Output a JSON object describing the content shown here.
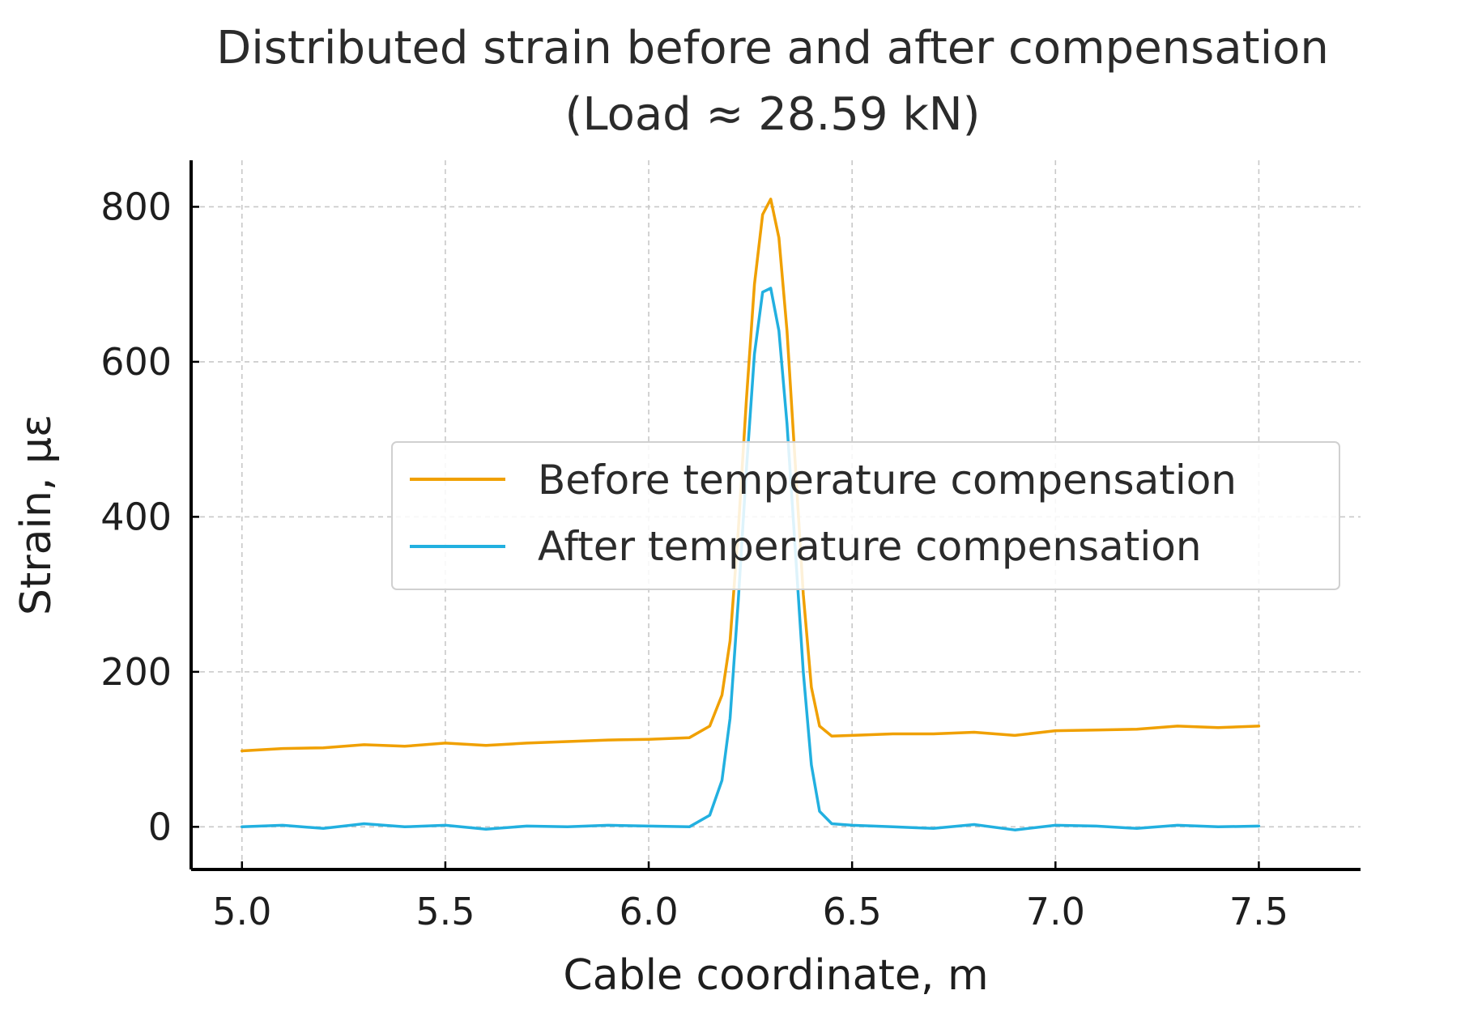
{
  "chart_data": {
    "type": "line",
    "title": [
      "Distributed strain before and after compensation",
      "(Load ≈ 28.59 kN)"
    ],
    "xlabel": "Cable coordinate, m",
    "ylabel": "Strain, µε",
    "xlim": [
      4.875,
      7.75
    ],
    "ylim": [
      -55,
      860
    ],
    "xticks": [
      5.0,
      5.5,
      6.0,
      6.5,
      7.0,
      7.5
    ],
    "xtick_labels": [
      "5.0",
      "5.5",
      "6.0",
      "6.5",
      "7.0",
      "7.5"
    ],
    "yticks": [
      0,
      200,
      400,
      600,
      800
    ],
    "ytick_labels": [
      "0",
      "200",
      "400",
      "600",
      "800"
    ],
    "grid": true,
    "legend_position": "center-right",
    "series": [
      {
        "name": "Before temperature compensation",
        "color": "#f0a000",
        "x": [
          5.0,
          5.1,
          5.2,
          5.3,
          5.4,
          5.5,
          5.6,
          5.7,
          5.8,
          5.9,
          6.0,
          6.1,
          6.15,
          6.18,
          6.2,
          6.22,
          6.24,
          6.26,
          6.28,
          6.3,
          6.32,
          6.34,
          6.36,
          6.38,
          6.4,
          6.42,
          6.45,
          6.5,
          6.6,
          6.7,
          6.8,
          6.9,
          7.0,
          7.1,
          7.2,
          7.3,
          7.4,
          7.5
        ],
        "y": [
          98,
          101,
          102,
          106,
          104,
          108,
          105,
          108,
          110,
          112,
          113,
          115,
          130,
          170,
          240,
          380,
          550,
          700,
          790,
          810,
          760,
          640,
          470,
          300,
          180,
          130,
          117,
          118,
          120,
          120,
          122,
          118,
          124,
          125,
          126,
          130,
          128,
          130
        ]
      },
      {
        "name": "After temperature compensation",
        "color": "#22b0e0",
        "x": [
          5.0,
          5.1,
          5.2,
          5.3,
          5.4,
          5.5,
          5.6,
          5.7,
          5.8,
          5.9,
          6.0,
          6.1,
          6.15,
          6.18,
          6.2,
          6.22,
          6.24,
          6.26,
          6.28,
          6.3,
          6.32,
          6.34,
          6.36,
          6.38,
          6.4,
          6.42,
          6.45,
          6.5,
          6.6,
          6.7,
          6.8,
          6.9,
          7.0,
          7.1,
          7.2,
          7.3,
          7.4,
          7.5
        ],
        "y": [
          0,
          2,
          -2,
          4,
          0,
          2,
          -3,
          1,
          0,
          2,
          1,
          0,
          15,
          60,
          140,
          290,
          460,
          610,
          690,
          695,
          640,
          520,
          360,
          200,
          80,
          20,
          4,
          2,
          0,
          -2,
          3,
          -4,
          2,
          1,
          -2,
          2,
          0,
          1
        ]
      }
    ]
  }
}
